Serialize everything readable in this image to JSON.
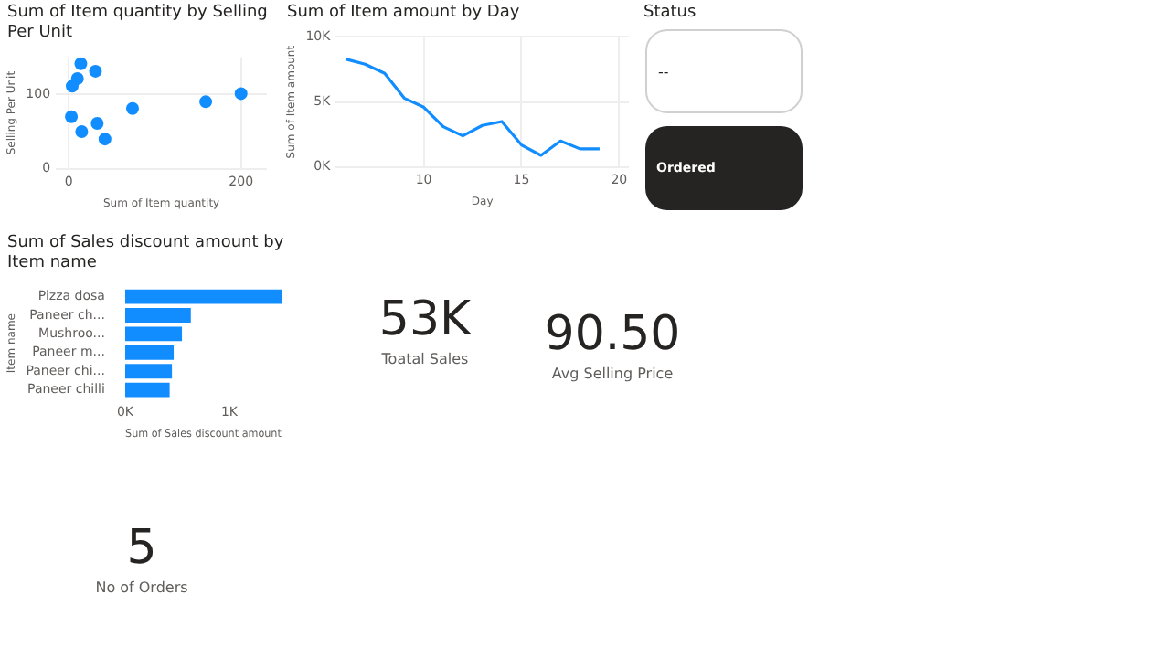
{
  "chart_data": [
    {
      "type": "scatter",
      "title": "Sum of Item quantity by Selling Per Unit",
      "xlabel": "Sum of Item quantity",
      "ylabel": "Selling Per Unit",
      "x": [
        14,
        31,
        10,
        4,
        3,
        15,
        33,
        42,
        74,
        159,
        200
      ],
      "series": [
        {
          "color": "#118dff",
          "values": [
            141,
            131,
            121,
            111,
            70,
            50,
            61,
            40,
            81,
            90,
            101
          ]
        }
      ],
      "xlim": [
        -15,
        230
      ],
      "xticks": [
        0,
        200
      ],
      "ylim": [
        0,
        150
      ],
      "yticks": [
        0,
        100
      ],
      "grid": true,
      "marker": "circle",
      "legend": false
    },
    {
      "type": "line",
      "title": "Sum of Item amount by Day",
      "xlabel": "Day",
      "ylabel": "Sum of Item amount",
      "x": [
        6,
        7,
        8,
        9,
        10,
        11,
        12,
        13,
        14,
        15,
        16,
        17,
        18,
        19
      ],
      "series": [
        {
          "color": "#118dff",
          "values": [
            8300,
            7900,
            7200,
            5300,
            4600,
            3100,
            2400,
            3200,
            3500,
            1700,
            900,
            2000,
            1400,
            1400
          ]
        }
      ],
      "xlim": [
        5.5,
        20.5
      ],
      "xticks": [
        10,
        15,
        20
      ],
      "ylim": [
        0,
        10000
      ],
      "yticks": [
        {
          "value": 0,
          "label": "0K"
        },
        {
          "value": 5000,
          "label": "5K"
        },
        {
          "value": 10000,
          "label": "10K"
        }
      ],
      "grid": true,
      "marker": "none",
      "legend": false
    },
    {
      "type": "other",
      "title": "Status",
      "annotations": [
        "--",
        "Ordered"
      ]
    },
    {
      "type": "bar",
      "orientation": "horizontal",
      "title": "Sum of Sales discount amount by Item name",
      "xlabel": "Sum of Sales discount amount",
      "ylabel": "Item name",
      "categories": [
        "Pizza dosa",
        "Paneer ch...",
        "Mushroo...",
        "Paneer m...",
        "Paneer chi...",
        "Paneer chilli"
      ],
      "series": [
        {
          "color": "#118dff",
          "values": [
            1500,
            630,
            545,
            466,
            449,
            427
          ]
        }
      ],
      "xlim": [
        0,
        1500
      ],
      "xticks": [
        {
          "value": 0,
          "label": "0K"
        },
        {
          "value": 1000,
          "label": "1K"
        }
      ],
      "grid": false,
      "legend": false
    },
    {
      "type": "other",
      "annotations": [
        "53K",
        "Toatal Sales"
      ]
    },
    {
      "type": "other",
      "annotations": [
        "90.50",
        "Avg Selling Price"
      ]
    },
    {
      "type": "other",
      "annotations": [
        "5",
        "No of Orders"
      ]
    }
  ]
}
